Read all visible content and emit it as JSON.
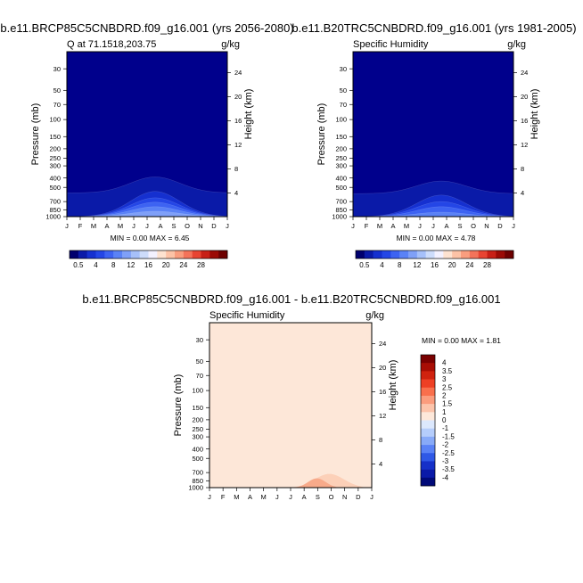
{
  "chart_data": [
    {
      "type": "heatmap",
      "title": "b.e11.BRCP85C5CNBDRD.f09_g16.001 (yrs 2056-2080)",
      "subtitle_left": "Q at 71.1518,203.75",
      "subtitle_right": "g/kg",
      "ylabel": "Pressure (mb)",
      "y2label": "Height (km)",
      "x_ticks": [
        "J",
        "F",
        "M",
        "A",
        "M",
        "J",
        "J",
        "A",
        "S",
        "O",
        "N",
        "D",
        "J"
      ],
      "y_ticks": [
        30,
        50,
        70,
        100,
        150,
        200,
        250,
        300,
        400,
        500,
        700,
        850,
        1000
      ],
      "y2_ticks": [
        4,
        8,
        12,
        16,
        20,
        24
      ],
      "ylim": [
        1000,
        20
      ],
      "stats": "MIN =   0.00 MAX =   6.45",
      "min": 0.0,
      "max": 6.45,
      "contours": [
        {
          "level": 0.5,
          "color": "#0a1aa8",
          "base_hpa": 570,
          "peak_hpa": 390
        },
        {
          "level": 1,
          "color": "#1530d0",
          "base_hpa": 1000,
          "peak_hpa": 550
        },
        {
          "level": 2,
          "color": "#2446e6",
          "base_hpa": 1000,
          "peak_hpa": 640
        },
        {
          "level": 3,
          "color": "#3d63f2",
          "base_hpa": 1000,
          "peak_hpa": 710
        },
        {
          "level": 4,
          "color": "#5a82f6",
          "base_hpa": 1000,
          "peak_hpa": 790
        },
        {
          "level": 5,
          "color": "#7fa0f8",
          "base_hpa": 1000,
          "peak_hpa": 880
        }
      ],
      "colorbar_labels": [
        "0.5",
        "4",
        "8",
        "12",
        "16",
        "20",
        "24",
        "28"
      ]
    },
    {
      "type": "heatmap",
      "title": "b.e11.B20TRC5CNBDRD.f09_g16.001 (yrs 1981-2005)",
      "subtitle_left": "Specific Humidity",
      "subtitle_right": "g/kg",
      "ylabel": "Pressure (mb)",
      "y2label": "Height (km)",
      "x_ticks": [
        "J",
        "F",
        "M",
        "A",
        "M",
        "J",
        "J",
        "A",
        "S",
        "O",
        "N",
        "D",
        "J"
      ],
      "y_ticks": [
        30,
        50,
        70,
        100,
        150,
        200,
        250,
        300,
        400,
        500,
        700,
        850,
        1000
      ],
      "y2_ticks": [
        4,
        8,
        12,
        16,
        20,
        24
      ],
      "ylim": [
        1000,
        20
      ],
      "stats": "MIN =   0.00 MAX =   4.78",
      "min": 0.0,
      "max": 4.78,
      "contours": [
        {
          "level": 0.5,
          "color": "#0a1aa8",
          "base_hpa": 580,
          "peak_hpa": 430
        },
        {
          "level": 1,
          "color": "#1530d0",
          "base_hpa": 1000,
          "peak_hpa": 600
        },
        {
          "level": 2,
          "color": "#2446e6",
          "base_hpa": 1000,
          "peak_hpa": 700
        },
        {
          "level": 3,
          "color": "#3d63f2",
          "base_hpa": 1000,
          "peak_hpa": 790
        },
        {
          "level": 4,
          "color": "#5a82f6",
          "base_hpa": 1000,
          "peak_hpa": 900
        }
      ],
      "colorbar_labels": [
        "0.5",
        "4",
        "8",
        "12",
        "16",
        "20",
        "24",
        "28"
      ]
    },
    {
      "type": "heatmap",
      "title": "b.e11.BRCP85C5CNBDRD.f09_g16.001 - b.e11.B20TRC5CNBDRD.f09_g16.001",
      "subtitle_left": "Specific Humidity",
      "subtitle_right": "g/kg",
      "ylabel": "Pressure (mb)",
      "y2label": "Height (km)",
      "x_ticks": [
        "J",
        "F",
        "M",
        "A",
        "M",
        "J",
        "J",
        "A",
        "S",
        "O",
        "N",
        "D",
        "J"
      ],
      "y_ticks": [
        30,
        50,
        70,
        100,
        150,
        200,
        250,
        300,
        400,
        500,
        700,
        850,
        1000
      ],
      "y2_ticks": [
        4,
        8,
        12,
        16,
        20,
        24
      ],
      "ylim": [
        1000,
        20
      ],
      "stats": "MIN =   0.00 MAX =   1.81",
      "min": 0.0,
      "max": 1.81,
      "background_color": "#fde7d8",
      "contours": [
        {
          "level": 1,
          "color": "#fcd0b8",
          "base_hpa": 1000,
          "peak_hpa": 720,
          "x_start": 0.42,
          "x_end": 1.0
        },
        {
          "level": 1.5,
          "color": "#f8aa8a",
          "base_hpa": 1000,
          "peak_hpa": 800,
          "x_start": 0.47,
          "x_end": 0.82
        }
      ],
      "colorbar_labels": [
        "4",
        "3.5",
        "3",
        "2.5",
        "2",
        "1.5",
        "1",
        "0",
        "-1",
        "-1.5",
        "-2",
        "-2.5",
        "-3",
        "-3.5",
        "-4"
      ]
    }
  ],
  "colors": {
    "seq_palette": [
      "#00006e",
      "#0a1aa8",
      "#1530d0",
      "#2446e6",
      "#3d63f2",
      "#5a82f6",
      "#7fa0f8",
      "#a6c0fa",
      "#cddcfb",
      "#f3f1ff",
      "#fde2d0",
      "#fcc2a6",
      "#f99d7e",
      "#f4735a",
      "#e84432",
      "#c81f16",
      "#9b0a05",
      "#6e0000"
    ],
    "div_palette": [
      "#7a0000",
      "#a80d04",
      "#d0220f",
      "#ee4024",
      "#f96f4c",
      "#fb9c7d",
      "#fcc4ab",
      "#fde8da",
      "#dce8fd",
      "#b5cdfb",
      "#88aaf8",
      "#5a82f6",
      "#2f58e6",
      "#1530c8",
      "#0a1aa8",
      "#000a78"
    ],
    "background_top": "#00008c"
  }
}
